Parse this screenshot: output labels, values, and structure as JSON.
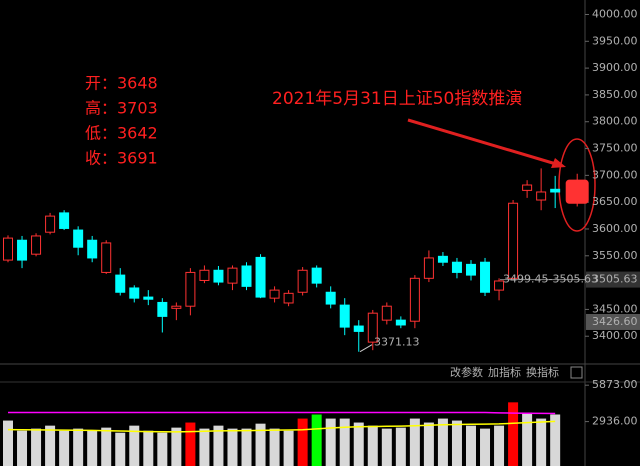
{
  "chart_data": {
    "type": "candlestick",
    "open": [
      3542,
      3579,
      3553,
      3594,
      3630,
      3598,
      3579,
      3519,
      3514,
      3490,
      3473,
      3463,
      3452,
      3456,
      3504,
      3523,
      3499,
      3531,
      3547,
      3471,
      3462,
      3482,
      3527,
      3482,
      3458,
      3419,
      3389,
      3430,
      3430,
      3428,
      3508,
      3549,
      3538,
      3534,
      3538,
      3486,
      3508,
      3672,
      3654,
      3674,
      3648
    ],
    "high": [
      3588,
      3587,
      3592,
      3630,
      3635,
      3605,
      3587,
      3579,
      3527,
      3495,
      3486,
      3471,
      3463,
      3527,
      3532,
      3531,
      3532,
      3538,
      3553,
      3493,
      3486,
      3529,
      3532,
      3493,
      3471,
      3430,
      3449,
      3463,
      3437,
      3514,
      3560,
      3557,
      3546,
      3542,
      3546,
      3508,
      3654,
      3691,
      3713,
      3699,
      3703
    ],
    "low": [
      3538,
      3527,
      3549,
      3590,
      3598,
      3551,
      3538,
      3516,
      3476,
      3463,
      3458,
      3407,
      3430,
      3439,
      3499,
      3495,
      3486,
      3486,
      3471,
      3463,
      3456,
      3476,
      3491,
      3452,
      3402,
      3371.13,
      3374,
      3422,
      3415,
      3415,
      3501,
      3531,
      3508,
      3504,
      3475,
      3467,
      3505,
      3658,
      3635,
      3639,
      3642
    ],
    "close": [
      3583,
      3542,
      3587,
      3624,
      3601,
      3566,
      3546,
      3574,
      3482,
      3471,
      3469,
      3437,
      3456,
      3519,
      3523,
      3501,
      3527,
      3493,
      3473,
      3486,
      3480,
      3523,
      3499,
      3460,
      3417,
      3409,
      3443,
      3456,
      3421,
      3508,
      3546,
      3538,
      3519,
      3514,
      3482,
      3503,
      3648,
      3682,
      3669,
      3669,
      3691
    ],
    "up_color": "#ff3232",
    "down_color": "#00ffff",
    "ylim": [
      3365,
      4027
    ],
    "yticks": [
      {
        "value": 3400,
        "label": "3400.00"
      },
      {
        "value": 3450,
        "label": "3450.00"
      },
      {
        "value": 3500,
        "label": "3500.00"
      },
      {
        "value": 3550,
        "label": "3550.00"
      },
      {
        "value": 3600,
        "label": "3600.00"
      },
      {
        "value": 3650,
        "label": "3650.00"
      },
      {
        "value": 3700,
        "label": "3700.00"
      },
      {
        "value": 3750,
        "label": "3750.00"
      },
      {
        "value": 3800,
        "label": "3800.00"
      },
      {
        "value": 3850,
        "label": "3850.00"
      },
      {
        "value": 3900,
        "label": "3900.00"
      },
      {
        "value": 3950,
        "label": "3950.00"
      },
      {
        "value": 4000,
        "label": "4000.00"
      }
    ],
    "price_markers": [
      {
        "value": 3505.63,
        "label": "3505.63"
      },
      {
        "value": 3426.6,
        "label": "3426.60"
      }
    ],
    "range_label": "3499.45-3505.63",
    "low_label": 3371.13,
    "info_lines": [
      "开：3648",
      "高：3703",
      "低：3642",
      "收：3691"
    ],
    "annotation": "2021年5月31日上证50指数推演",
    "toolbar": [
      "改参数",
      "加指标",
      "换指标"
    ],
    "volume": {
      "values": [
        3020,
        2200,
        2370,
        2610,
        2200,
        2370,
        2200,
        2450,
        2040,
        2610,
        2200,
        2040,
        2450,
        2860,
        2370,
        2610,
        2370,
        2370,
        2770,
        2370,
        2200,
        3180,
        3510,
        3180,
        3180,
        2860,
        2610,
        2370,
        2450,
        3180,
        2860,
        3180,
        3020,
        2610,
        2370,
        2610,
        4490,
        3670,
        3180,
        3510,
        null
      ],
      "colors": [
        "#d8d8d8",
        "#d8d8d8",
        "#d8d8d8",
        "#d8d8d8",
        "#d8d8d8",
        "#d8d8d8",
        "#d8d8d8",
        "#d8d8d8",
        "#d8d8d8",
        "#d8d8d8",
        "#d8d8d8",
        "#d8d8d8",
        "#d8d8d8",
        "#ff0000",
        "#d8d8d8",
        "#d8d8d8",
        "#d8d8d8",
        "#d8d8d8",
        "#d8d8d8",
        "#d8d8d8",
        "#d8d8d8",
        "#ff0000",
        "#00ff00",
        "#d8d8d8",
        "#d8d8d8",
        "#d8d8d8",
        "#d8d8d8",
        "#d8d8d8",
        "#d8d8d8",
        "#d8d8d8",
        "#d8d8d8",
        "#d8d8d8",
        "#d8d8d8",
        "#d8d8d8",
        "#d8d8d8",
        "#d8d8d8",
        "#ff0000",
        "#d8d8d8",
        "#d8d8d8",
        "#d8d8d8",
        "#d8d8d8"
      ],
      "ylim": [
        0,
        7260
      ],
      "yticks": [
        {
          "value": 2936,
          "label": "2936.00"
        },
        {
          "value": 5873,
          "label": "5873.00"
        }
      ],
      "lines": [
        {
          "color": "#ff00ff",
          "values": [
            3670,
            3670,
            3670,
            3670,
            3670,
            3670,
            3670,
            3670,
            3670,
            3670,
            3670,
            3670,
            3670,
            3670,
            3670,
            3670,
            3670,
            3670,
            3670,
            3670,
            3670,
            3670,
            3670,
            3670,
            3670,
            3670,
            3670,
            3670,
            3670,
            3670,
            3670,
            3670,
            3670,
            3670,
            3670,
            3640,
            3620,
            3610,
            3600,
            3590,
            null
          ]
        },
        {
          "color": "#ffff00",
          "values": [
            2290,
            2280,
            2270,
            2260,
            2250,
            2240,
            2230,
            2200,
            2180,
            2150,
            2130,
            2120,
            2110,
            2130,
            2160,
            2190,
            2200,
            2210,
            2230,
            2250,
            2260,
            2280,
            2350,
            2420,
            2480,
            2520,
            2540,
            2560,
            2570,
            2600,
            2640,
            2680,
            2700,
            2720,
            2730,
            2750,
            2800,
            2850,
            2900,
            2950,
            null
          ]
        }
      ]
    }
  }
}
